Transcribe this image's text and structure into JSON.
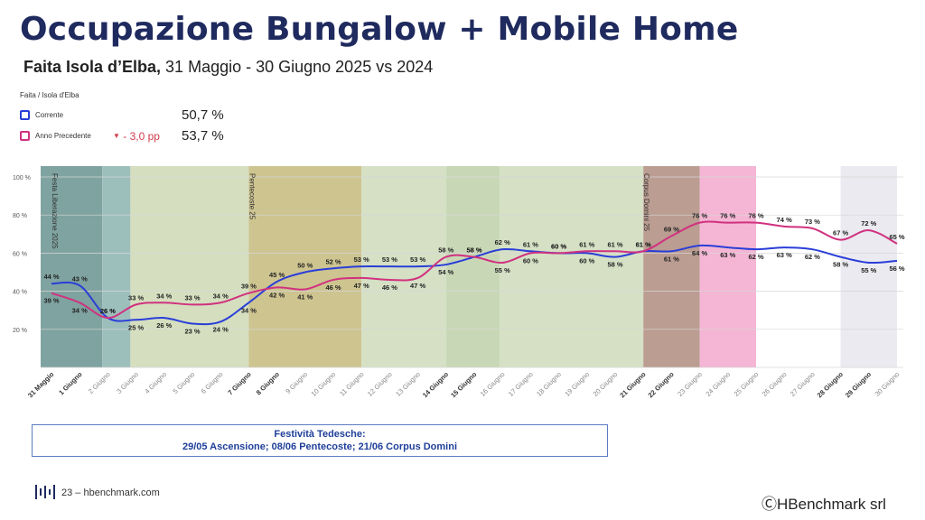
{
  "header": {
    "title": "Occupazione Bungalow + Mobile Home",
    "subtitle_bold": "Faita Isola d’Elba,",
    "subtitle_rest": " 31 Maggio - 30 Giugno 2025 vs 2024"
  },
  "legend": {
    "heading": "Faita / Isola d'Elba",
    "current_label": "Corrente",
    "current_value": "50,7 %",
    "previous_label": "Anno Precedente",
    "previous_value": "53,7 %",
    "delta": "- 3,0 pp",
    "current_color": "#2a3ed8",
    "previous_color": "#d1317f"
  },
  "chart_data": {
    "type": "line",
    "categories": [
      "31 Maggio",
      "1 Giugno",
      "2 Giugno",
      "3 Giugno",
      "4 Giugno",
      "5 Giugno",
      "6 Giugno",
      "7 Giugno",
      "8 Giugno",
      "9 Giugno",
      "10 Giugno",
      "11 Giugno",
      "12 Giugno",
      "13 Giugno",
      "14 Giugno",
      "15 Giugno",
      "16 Giugno",
      "17 Giugno",
      "18 Giugno",
      "19 Giugno",
      "20 Giugno",
      "21 Giugno",
      "22 Giugno",
      "23 Giugno",
      "24 Giugno",
      "25 Giugno",
      "26 Giugno",
      "27 Giugno",
      "28 Giugno",
      "29 Giugno",
      "30 Giugno"
    ],
    "bold_categories": [
      "31 Maggio",
      "1 Giugno",
      "7 Giugno",
      "8 Giugno",
      "14 Giugno",
      "15 Giugno",
      "21 Giugno",
      "22 Giugno",
      "28 Giugno",
      "29 Giugno"
    ],
    "series": [
      {
        "name": "Corrente",
        "color": "#2a3ed8",
        "values": [
          44,
          43,
          26,
          25,
          26,
          23,
          24,
          34,
          45,
          50,
          52,
          53,
          53,
          53,
          54,
          58,
          62,
          61,
          60,
          60,
          58,
          61,
          61,
          64,
          63,
          62,
          63,
          62,
          58,
          55,
          56
        ]
      },
      {
        "name": "Anno Precedente",
        "color": "#d1317f",
        "values": [
          39,
          34,
          26,
          33,
          34,
          33,
          34,
          39,
          42,
          41,
          46,
          47,
          46,
          47,
          58,
          58,
          55,
          60,
          60,
          61,
          61,
          61,
          69,
          76,
          76,
          76,
          74,
          73,
          67,
          72,
          65
        ]
      }
    ],
    "ylim": [
      0,
      100
    ],
    "yticks": [
      "100 %",
      "80 %",
      "60 %",
      "40 %",
      "20 %",
      ""
    ],
    "ytick_values": [
      100,
      80,
      60,
      40,
      20,
      0
    ],
    "value_suffix": " %",
    "grid": true,
    "bands": [
      {
        "from": 0,
        "to": 1.8,
        "color": "#7fa3a0"
      },
      {
        "from": 1.8,
        "to": 2.8,
        "color": "#9dbfbc"
      },
      {
        "from": 2.8,
        "to": 7,
        "color": "#d5dfbf"
      },
      {
        "from": 7,
        "to": 11,
        "color": "#cdc490"
      },
      {
        "from": 11,
        "to": 14,
        "color": "#d5e0c5"
      },
      {
        "from": 14,
        "to": 15.9,
        "color": "#c8d8b6"
      },
      {
        "from": 15.9,
        "to": 21,
        "color": "#d5e0c5"
      },
      {
        "from": 21,
        "to": 23,
        "color": "#bb9d92"
      },
      {
        "from": 23,
        "to": 25,
        "color": "#f4b6d4"
      },
      {
        "from": 28,
        "to": 30,
        "color": "#eaeaf0"
      }
    ],
    "annotations": [
      {
        "label": "Festa Liberazione 2025",
        "at": 0
      },
      {
        "label": "Pentecoste 25",
        "at": 7
      },
      {
        "label": "Corpus Domini 25",
        "at": 21
      }
    ]
  },
  "note": {
    "line1": "Festività Tedesche:",
    "line2": "29/05 Ascensione; 08/06 Pentecoste; 21/06 Corpus Domini"
  },
  "footer": {
    "page": "23 – hbenchmark.com",
    "copyright": "ⒸHBenchmark srl"
  }
}
